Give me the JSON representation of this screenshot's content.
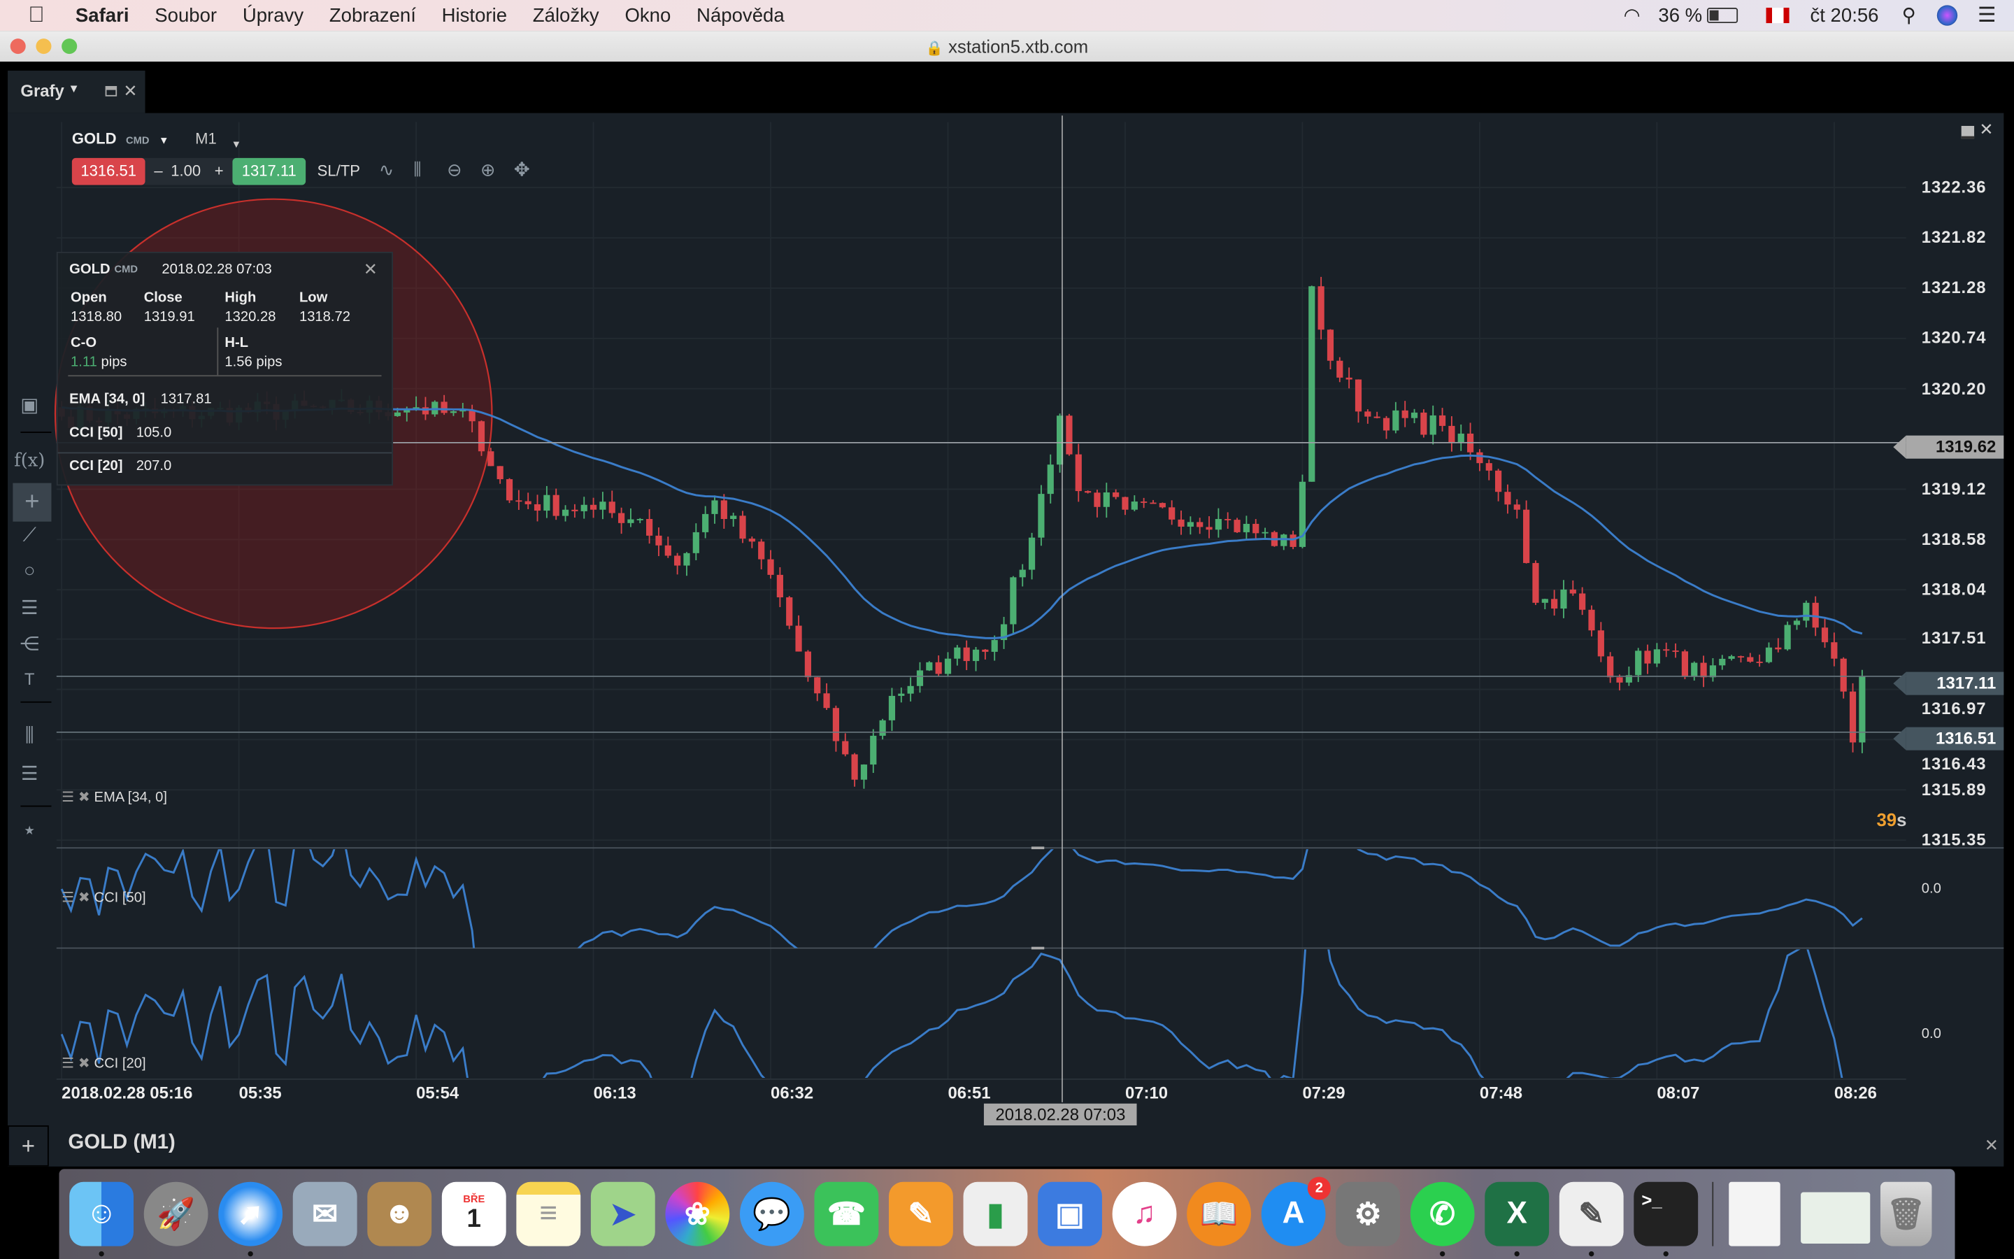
{
  "menubar": {
    "apple_icon": "apple-icon",
    "items": [
      "Safari",
      "Soubor",
      "Úpravy",
      "Zobrazení",
      "Historie",
      "Záložky",
      "Okno",
      "Nápověda"
    ],
    "battery": "36 %",
    "clock": "čt 20:56"
  },
  "browser": {
    "url": "xstation5.xtb.com"
  },
  "tab": {
    "label": "Grafy"
  },
  "instrument": {
    "symbol": "GOLD",
    "type": "CMD",
    "timeframe": "M1",
    "sell_price": "1316.51",
    "volume_minus": "–",
    "volume": "1.00",
    "volume_plus": "+",
    "buy_price": "1317.11",
    "sltp": "SL/TP"
  },
  "tooltip": {
    "symbol": "GOLD",
    "type": "CMD",
    "datetime": "2018.02.28 07:03",
    "open_label": "Open",
    "open": "1318.80",
    "close_label": "Close",
    "close": "1319.91",
    "high_label": "High",
    "high": "1320.28",
    "low_label": "Low",
    "low": "1318.72",
    "co_label": "C-O",
    "co_value": "1.11",
    "co_unit": "pips",
    "hl_label": "H-L",
    "hl_value": "1.56 pips",
    "ema_label": "EMA [34, 0]",
    "ema_value": "1317.81",
    "cci50_label": "CCI [50]",
    "cci50_value": "105.0",
    "cci20_label": "CCI [20]",
    "cci20_value": "207.0"
  },
  "price_axis": [
    "1322.36",
    "1321.82",
    "1321.28",
    "1320.74",
    "1320.20",
    "1319.12",
    "1318.58",
    "1318.04",
    "1317.51",
    "1316.97",
    "1316.43",
    "1315.89",
    "1315.35"
  ],
  "price_tags": {
    "crosshair": "1319.62",
    "ask": "1317.11",
    "bid": "1316.51"
  },
  "countdown": {
    "value": "39",
    "unit": "s"
  },
  "time_axis": [
    "2018.02.28 05:16",
    "05:35",
    "05:54",
    "06:13",
    "06:32",
    "06:51",
    "07:10",
    "07:29",
    "07:48",
    "08:07",
    "08:26"
  ],
  "crosshair_time": "2018.02.28 07:03",
  "indicators": {
    "ema": "EMA [34, 0]",
    "cci50": "CCI [50]",
    "cci50_zero": "0.0",
    "cci20": "CCI [20]",
    "cci20_zero": "0.0"
  },
  "bottom_panel": {
    "title": "GOLD (M1)",
    "add": "+"
  },
  "dock": {
    "calendar_month": "BŘE",
    "calendar_day": "1",
    "appstore_badge": "2"
  },
  "colors": {
    "up": "#4caf72",
    "down": "#d9444a",
    "ema": "#3a7cc8",
    "background": "#192027",
    "sell": "#d9444a",
    "buy": "#4caf72",
    "countdown": "#f0a030"
  },
  "chart_data": {
    "type": "candlestick",
    "symbol": "GOLD",
    "timeframe": "M1",
    "ylim": [
      1315.35,
      1322.36
    ],
    "x_start": "05:16",
    "close_keypoints": [
      {
        "time": "05:16",
        "close": 1319.9
      },
      {
        "time": "05:54",
        "close": 1320.0
      },
      {
        "time": "06:00",
        "close": 1319.85
      },
      {
        "time": "06:04",
        "close": 1319.0
      },
      {
        "time": "06:13",
        "close": 1318.9
      },
      {
        "time": "06:18",
        "close": 1318.8
      },
      {
        "time": "06:22",
        "close": 1318.3
      },
      {
        "time": "06:26",
        "close": 1319.0
      },
      {
        "time": "06:32",
        "close": 1318.2
      },
      {
        "time": "06:36",
        "close": 1317.1
      },
      {
        "time": "06:41",
        "close": 1316.0
      },
      {
        "time": "06:45",
        "close": 1316.9
      },
      {
        "time": "06:51",
        "close": 1317.3
      },
      {
        "time": "06:56",
        "close": 1317.5
      },
      {
        "time": "07:00",
        "close": 1318.6
      },
      {
        "time": "07:03",
        "close": 1319.91
      },
      {
        "time": "07:05",
        "close": 1319.1
      },
      {
        "time": "07:10",
        "close": 1318.9
      },
      {
        "time": "07:20",
        "close": 1318.8
      },
      {
        "time": "07:28",
        "close": 1318.5
      },
      {
        "time": "07:29",
        "close": 1319.2
      },
      {
        "time": "07:30",
        "close": 1321.3
      },
      {
        "time": "07:32",
        "close": 1320.5
      },
      {
        "time": "07:36",
        "close": 1319.9
      },
      {
        "time": "07:44",
        "close": 1319.8
      },
      {
        "time": "07:48",
        "close": 1319.4
      },
      {
        "time": "07:52",
        "close": 1318.9
      },
      {
        "time": "07:54",
        "close": 1317.9
      },
      {
        "time": "07:58",
        "close": 1318.0
      },
      {
        "time": "08:02",
        "close": 1317.1
      },
      {
        "time": "08:07",
        "close": 1317.4
      },
      {
        "time": "08:12",
        "close": 1317.1
      },
      {
        "time": "08:20",
        "close": 1317.4
      },
      {
        "time": "08:23",
        "close": 1317.9
      },
      {
        "time": "08:26",
        "close": 1317.3
      },
      {
        "time": "08:28",
        "close": 1316.4
      },
      {
        "time": "08:29",
        "close": 1317.11
      }
    ],
    "horizontal_lines": [
      1319.62,
      1317.11,
      1316.51
    ],
    "crosshair": {
      "time": "07:03",
      "price": 1319.62
    }
  }
}
